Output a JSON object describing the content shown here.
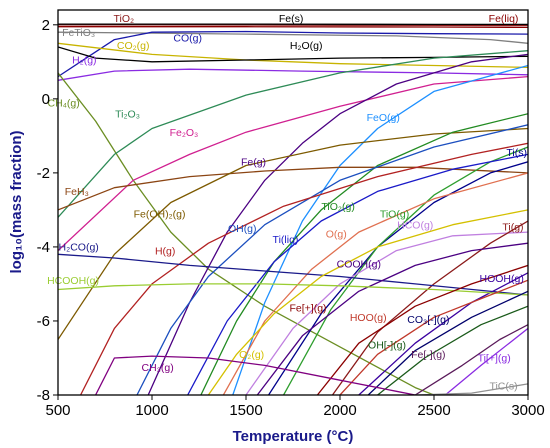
{
  "chart_data": {
    "type": "line",
    "xlabel": "Temperature (°C)",
    "ylabel": "log₁₀(mass fraction)",
    "xlim": [
      500,
      3000
    ],
    "ylim": [
      -8,
      2.4
    ],
    "xticks": [
      500,
      1000,
      1500,
      2000,
      2500,
      3000
    ],
    "yticks": [
      -8,
      -6,
      -4,
      -2,
      0,
      2
    ],
    "grid": false,
    "legend": "inline labels",
    "series": [
      {
        "name": "TiO₂",
        "color": "#8b1a1a",
        "label_at": [
          850,
          2.08
        ],
        "points": [
          [
            500,
            2.0
          ],
          [
            1000,
            2.0
          ],
          [
            2000,
            1.99
          ],
          [
            3000,
            1.98
          ]
        ]
      },
      {
        "name": "Fe(s)",
        "color": "#000000",
        "label_at": [
          1740,
          2.08
        ],
        "points": [
          [
            500,
            2.02
          ],
          [
            1500,
            2.02
          ],
          [
            2500,
            2.01
          ],
          [
            3000,
            2.01
          ]
        ]
      },
      {
        "name": "Fe(liq)",
        "color": "#8b0000",
        "label_at": [
          2870,
          2.08
        ],
        "points": [
          [
            500,
            1.95
          ],
          [
            1500,
            1.95
          ],
          [
            2500,
            1.94
          ],
          [
            3000,
            1.93
          ]
        ]
      },
      {
        "name": "FeTiO₃",
        "color": "#808080",
        "label_at": [
          610,
          1.7
        ],
        "points": [
          [
            500,
            1.8
          ],
          [
            1500,
            1.75
          ],
          [
            2300,
            1.7
          ],
          [
            2800,
            1.6
          ],
          [
            3000,
            1.5
          ]
        ]
      },
      {
        "name": "CO(g)",
        "color": "#1a1aaa",
        "label_at": [
          1190,
          1.55
        ],
        "points": [
          [
            500,
            0.6
          ],
          [
            650,
            1.1
          ],
          [
            800,
            1.6
          ],
          [
            1000,
            1.8
          ],
          [
            1500,
            1.82
          ],
          [
            2000,
            1.78
          ],
          [
            2500,
            1.76
          ],
          [
            3000,
            1.75
          ]
        ]
      },
      {
        "name": "CO₂(g)",
        "color": "#c8b400",
        "label_at": [
          900,
          1.35
        ],
        "points": [
          [
            500,
            1.5
          ],
          [
            1000,
            1.2
          ],
          [
            1500,
            1.05
          ],
          [
            2000,
            0.95
          ],
          [
            2500,
            0.9
          ],
          [
            3000,
            0.85
          ]
        ]
      },
      {
        "name": "H₂O(g)",
        "color": "#000000",
        "label_at": [
          1820,
          1.35
        ],
        "points": [
          [
            500,
            1.4
          ],
          [
            700,
            1.1
          ],
          [
            1000,
            1.0
          ],
          [
            1500,
            1.05
          ],
          [
            2000,
            1.1
          ],
          [
            2500,
            1.12
          ],
          [
            3000,
            1.15
          ]
        ]
      },
      {
        "name": "H₂(g)",
        "color": "#8a2be2",
        "label_at": [
          640,
          0.95
        ],
        "points": [
          [
            500,
            0.5
          ],
          [
            800,
            0.75
          ],
          [
            1200,
            0.8
          ],
          [
            1800,
            0.75
          ],
          [
            2500,
            0.7
          ],
          [
            3000,
            0.65
          ]
        ]
      },
      {
        "name": "CH₄(g)",
        "color": "#6b8e23",
        "label_at": [
          530,
          -0.2
        ],
        "points": [
          [
            500,
            0.7
          ],
          [
            700,
            -0.6
          ],
          [
            900,
            -2.2
          ],
          [
            1100,
            -3.6
          ],
          [
            1300,
            -4.6
          ],
          [
            1600,
            -5.6
          ],
          [
            2000,
            -6.7
          ],
          [
            2400,
            -7.8
          ],
          [
            2500,
            -8.0
          ]
        ]
      },
      {
        "name": "Ti₂O₃",
        "color": "#2e8b57",
        "label_at": [
          870,
          -0.5
        ],
        "points": [
          [
            500,
            -3.2
          ],
          [
            800,
            -1.5
          ],
          [
            1000,
            -0.8
          ],
          [
            1500,
            0.1
          ],
          [
            2000,
            0.7
          ],
          [
            2500,
            1.1
          ],
          [
            3000,
            1.3
          ]
        ]
      },
      {
        "name": "Fe₂O₃",
        "color": "#d02090",
        "label_at": [
          1170,
          -1.0
        ],
        "points": [
          [
            500,
            -4.1
          ],
          [
            900,
            -2.2
          ],
          [
            1200,
            -1.5
          ],
          [
            1500,
            -0.9
          ],
          [
            2000,
            -0.2
          ],
          [
            2500,
            0.4
          ],
          [
            3000,
            0.6
          ]
        ]
      },
      {
        "name": "FeO(g)",
        "color": "#1e90ff",
        "label_at": [
          2230,
          -0.6
        ],
        "points": [
          [
            1430,
            -8.0
          ],
          [
            1600,
            -5.5
          ],
          [
            1800,
            -3.3
          ],
          [
            2000,
            -1.8
          ],
          [
            2200,
            -0.8
          ],
          [
            2500,
            0.2
          ],
          [
            3000,
            0.9
          ]
        ]
      },
      {
        "name": "Fe(g)",
        "color": "#4b0082",
        "label_at": [
          1540,
          -1.8
        ],
        "points": [
          [
            980,
            -8.0
          ],
          [
            1200,
            -5.5
          ],
          [
            1400,
            -3.6
          ],
          [
            1600,
            -2.2
          ],
          [
            1800,
            -1.2
          ],
          [
            2000,
            -0.4
          ],
          [
            2300,
            0.4
          ],
          [
            2700,
            1.0
          ],
          [
            3000,
            1.2
          ]
        ]
      },
      {
        "name": "FeH₃",
        "color": "#8b4513",
        "label_at": [
          600,
          -2.6
        ],
        "points": [
          [
            500,
            -3.0
          ],
          [
            800,
            -2.4
          ],
          [
            1200,
            -2.1
          ],
          [
            1600,
            -1.95
          ],
          [
            2000,
            -1.85
          ],
          [
            2400,
            -1.85
          ],
          [
            3000,
            -2.0
          ]
        ]
      },
      {
        "name": "Fe(OH)₂(g)",
        "color": "#7d5a00",
        "label_at": [
          1040,
          -3.2
        ],
        "points": [
          [
            500,
            -6.5
          ],
          [
            800,
            -4.2
          ],
          [
            1100,
            -2.8
          ],
          [
            1500,
            -1.8
          ],
          [
            2000,
            -1.25
          ],
          [
            2500,
            -0.95
          ],
          [
            3000,
            -0.8
          ]
        ]
      },
      {
        "name": "Ti(s)",
        "color": "#00008b",
        "label_at": [
          2940,
          -1.55
        ],
        "points": [
          [
            1620,
            -8.0
          ],
          [
            1900,
            -5.8
          ],
          [
            2200,
            -4.0
          ],
          [
            2500,
            -2.8
          ],
          [
            2800,
            -2.0
          ],
          [
            3000,
            -1.7
          ]
        ]
      },
      {
        "name": "TiO₂(g)",
        "color": "#228b22",
        "label_at": [
          1990,
          -3.0
        ],
        "points": [
          [
            1260,
            -8.0
          ],
          [
            1450,
            -6.0
          ],
          [
            1650,
            -4.4
          ],
          [
            1900,
            -3.0
          ],
          [
            2200,
            -1.8
          ],
          [
            2600,
            -0.9
          ],
          [
            3000,
            -0.4
          ]
        ]
      },
      {
        "name": "TiO(g)",
        "color": "#2e9e2e",
        "label_at": [
          2290,
          -3.2
        ],
        "points": [
          [
            1700,
            -8.0
          ],
          [
            1950,
            -5.7
          ],
          [
            2200,
            -4.0
          ],
          [
            2500,
            -2.6
          ],
          [
            2800,
            -1.7
          ],
          [
            3000,
            -1.3
          ]
        ]
      },
      {
        "name": "OH(g)",
        "color": "#1c4fbf",
        "label_at": [
          1480,
          -3.6
        ],
        "points": [
          [
            920,
            -8.0
          ],
          [
            1100,
            -6.2
          ],
          [
            1300,
            -4.8
          ],
          [
            1600,
            -3.4
          ],
          [
            2000,
            -2.2
          ],
          [
            2500,
            -1.3
          ],
          [
            3000,
            -0.7
          ]
        ]
      },
      {
        "name": "Ti(liq)",
        "color": "#1a1ac8",
        "label_at": [
          1710,
          -3.9
        ],
        "points": [
          [
            1190,
            -8.0
          ],
          [
            1400,
            -6.0
          ],
          [
            1650,
            -4.4
          ],
          [
            1900,
            -3.3
          ],
          [
            2200,
            -2.5
          ],
          [
            2600,
            -1.9
          ],
          [
            3000,
            -1.5
          ]
        ]
      },
      {
        "name": "O(g)",
        "color": "#e07050",
        "label_at": [
          1980,
          -3.75
        ],
        "points": [
          [
            1380,
            -8.0
          ],
          [
            1600,
            -6.0
          ],
          [
            1850,
            -4.6
          ],
          [
            2100,
            -3.6
          ],
          [
            2500,
            -2.7
          ],
          [
            3000,
            -2.0
          ]
        ]
      },
      {
        "name": "HCO(g)",
        "color": "#c080e0",
        "label_at": [
          2400,
          -3.5
        ],
        "points": [
          [
            1500,
            -8.0
          ],
          [
            1750,
            -6.2
          ],
          [
            2000,
            -5.0
          ],
          [
            2300,
            -4.1
          ],
          [
            2600,
            -3.7
          ],
          [
            3000,
            -3.6
          ]
        ]
      },
      {
        "name": "Ti(g)",
        "color": "#8b1a1a",
        "label_at": [
          2920,
          -3.55
        ],
        "points": [
          [
            1960,
            -8.0
          ],
          [
            2200,
            -6.3
          ],
          [
            2500,
            -5.0
          ],
          [
            2800,
            -3.9
          ],
          [
            3000,
            -3.3
          ]
        ]
      },
      {
        "name": "H(g)",
        "color": "#b22222",
        "label_at": [
          1070,
          -4.2
        ],
        "points": [
          [
            620,
            -8.0
          ],
          [
            800,
            -6.2
          ],
          [
            1000,
            -5.0
          ],
          [
            1300,
            -3.9
          ],
          [
            1700,
            -2.9
          ],
          [
            2200,
            -2.1
          ],
          [
            2700,
            -1.5
          ],
          [
            3000,
            -1.2
          ]
        ]
      },
      {
        "name": "H₂CO(g)",
        "color": "#1a1a8a",
        "label_at": [
          610,
          -4.1
        ],
        "points": [
          [
            500,
            -4.2
          ],
          [
            800,
            -4.3
          ],
          [
            1200,
            -4.5
          ],
          [
            1600,
            -4.65
          ],
          [
            2000,
            -4.8
          ],
          [
            2400,
            -5.0
          ],
          [
            3000,
            -5.3
          ]
        ]
      },
      {
        "name": "COOH(g)",
        "color": "#4b0082",
        "label_at": [
          2100,
          -4.55
        ],
        "points": [
          [
            1560,
            -8.0
          ],
          [
            1800,
            -6.4
          ],
          [
            2100,
            -5.2
          ],
          [
            2400,
            -4.5
          ],
          [
            2700,
            -4.1
          ],
          [
            3000,
            -3.9
          ]
        ]
      },
      {
        "name": "HOOH(g)",
        "color": "#3a00a0",
        "label_at": [
          2860,
          -4.95
        ],
        "points": [
          [
            2100,
            -8.0
          ],
          [
            2400,
            -6.6
          ],
          [
            2700,
            -5.5
          ],
          [
            3000,
            -4.7
          ]
        ]
      },
      {
        "name": "HCOOH(g)",
        "color": "#9acd32",
        "label_at": [
          580,
          -5.0
        ],
        "points": [
          [
            500,
            -5.15
          ],
          [
            800,
            -5.05
          ],
          [
            1200,
            -5.0
          ],
          [
            1600,
            -5.0
          ],
          [
            2000,
            -5.05
          ],
          [
            2500,
            -5.15
          ],
          [
            3000,
            -5.3
          ]
        ]
      },
      {
        "name": "Fe[+](g)",
        "color": "#8b0000",
        "label_at": [
          1830,
          -5.75
        ],
        "points": [
          [
            1880,
            -8.0
          ],
          [
            2100,
            -6.6
          ],
          [
            2400,
            -5.6
          ],
          [
            2700,
            -5.0
          ],
          [
            3000,
            -4.5
          ]
        ]
      },
      {
        "name": "HOO(g)",
        "color": "#c0392b",
        "label_at": [
          2150,
          -6.0
        ],
        "points": [
          [
            2000,
            -8.0
          ],
          [
            2200,
            -6.9
          ],
          [
            2500,
            -5.9
          ],
          [
            2800,
            -5.3
          ],
          [
            3000,
            -4.9
          ]
        ]
      },
      {
        "name": "CO₃[-](g)",
        "color": "#00006b",
        "label_at": [
          2470,
          -6.05
        ],
        "points": [
          [
            2150,
            -8.0
          ],
          [
            2400,
            -6.8
          ],
          [
            2700,
            -5.9
          ],
          [
            3000,
            -5.2
          ]
        ]
      },
      {
        "name": "OH[-](g)",
        "color": "#1a5a1a",
        "label_at": [
          2250,
          -6.75
        ],
        "points": [
          [
            2200,
            -8.0
          ],
          [
            2450,
            -7.0
          ],
          [
            2750,
            -6.1
          ],
          [
            3000,
            -5.6
          ]
        ]
      },
      {
        "name": "Fe[-](g)",
        "color": "#5a1a5a",
        "label_at": [
          2470,
          -7.0
        ],
        "points": [
          [
            2400,
            -8.0
          ],
          [
            2650,
            -7.2
          ],
          [
            2850,
            -6.5
          ],
          [
            3000,
            -6.1
          ]
        ]
      },
      {
        "name": "Ti[+](g)",
        "color": "#8a2be2",
        "label_at": [
          2820,
          -7.1
        ],
        "points": [
          [
            2560,
            -8.0
          ],
          [
            2750,
            -7.2
          ],
          [
            2900,
            -6.6
          ],
          [
            3000,
            -6.2
          ]
        ]
      },
      {
        "name": "O₂(g)",
        "color": "#d4c000",
        "label_at": [
          1530,
          -7.0
        ],
        "points": [
          [
            1300,
            -8.0
          ],
          [
            1450,
            -6.9
          ],
          [
            1650,
            -5.8
          ],
          [
            1900,
            -4.8
          ],
          [
            2200,
            -4.0
          ],
          [
            2600,
            -3.4
          ],
          [
            3000,
            -3.0
          ]
        ]
      },
      {
        "name": "CH₃(g)",
        "color": "#800080",
        "label_at": [
          1030,
          -7.35
        ],
        "points": [
          [
            700,
            -8.0
          ],
          [
            800,
            -7.0
          ],
          [
            1000,
            -6.95
          ],
          [
            1300,
            -7.0
          ],
          [
            1600,
            -7.2
          ],
          [
            2000,
            -7.6
          ],
          [
            2300,
            -7.9
          ],
          [
            2400,
            -8.0
          ]
        ]
      },
      {
        "name": "TiC(s)",
        "color": "#909090",
        "label_at": [
          2870,
          -7.85
        ],
        "points": [
          [
            2400,
            -8.0
          ],
          [
            2700,
            -7.95
          ],
          [
            3000,
            -7.7
          ]
        ]
      }
    ]
  }
}
